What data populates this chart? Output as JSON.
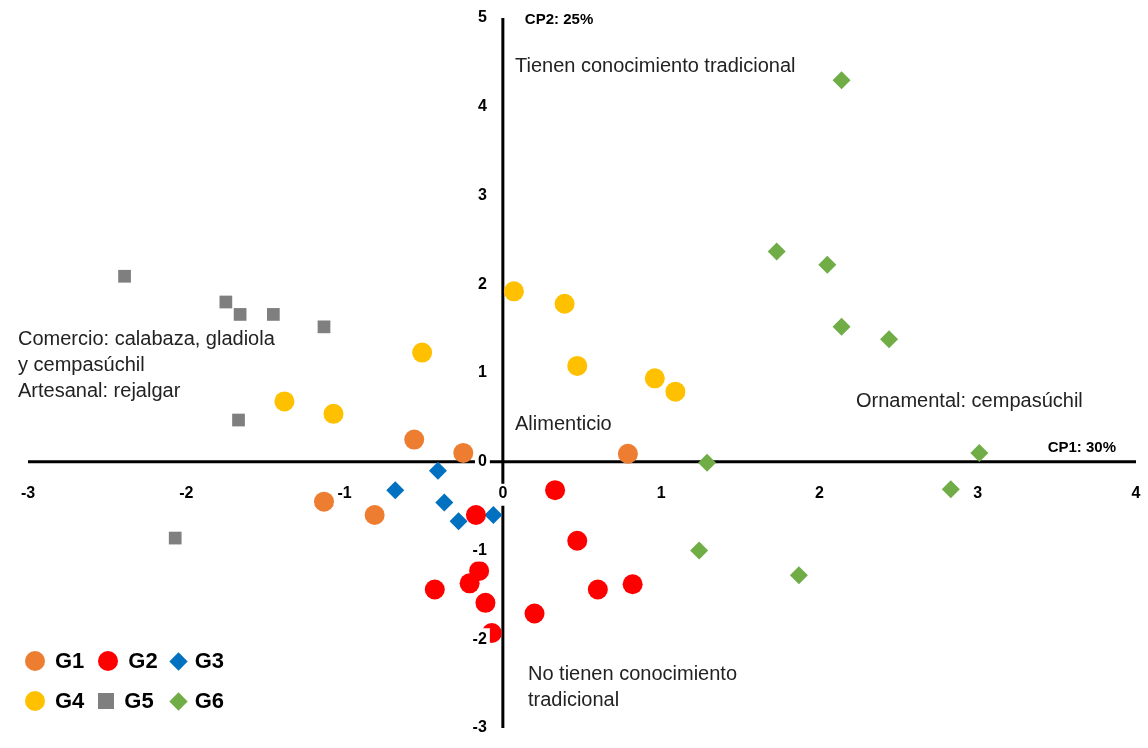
{
  "chart_data": {
    "type": "scatter",
    "xlabel": "CP1: 30%",
    "ylabel": "CP2: 25%",
    "xlim": [
      -3,
      4
    ],
    "xticks": [
      -3,
      -2,
      -1,
      0,
      1,
      2,
      3,
      4
    ],
    "ylim": [
      -3,
      5
    ],
    "yticks": [
      -3,
      -2,
      -1,
      0,
      1,
      2,
      3,
      4,
      5
    ],
    "grid": false,
    "legend": "bottom left",
    "annotations": [
      "Tienen conocimiento tradicional",
      "Comercio: calabaza, gladiola y cempasúchil",
      "Artesanal: rejalgar",
      "Alimenticio",
      "Ornamental: cempasúchil",
      "No tienen conocimiento tradicional"
    ],
    "series": [
      {
        "name": "G1",
        "color": "#ed7d31",
        "marker": "circle",
        "x": [
          -0.56,
          -0.25,
          -1.13,
          -0.81,
          0.79
        ],
        "values": [
          0.25,
          0.1,
          -0.45,
          -0.6,
          0.09
        ]
      },
      {
        "name": "G2",
        "color": "#ff0000",
        "marker": "circle",
        "x": [
          0.33,
          -0.17,
          0.47,
          -0.43,
          -0.21,
          -0.15,
          -0.11,
          -0.07,
          0.2,
          0.6,
          0.82
        ],
        "values": [
          -0.32,
          -0.6,
          -0.89,
          -1.44,
          -1.37,
          -1.23,
          -1.59,
          -1.93,
          -1.71,
          -1.44,
          -1.38
        ]
      },
      {
        "name": "G3",
        "color": "#0070c0",
        "marker": "diamond",
        "x": [
          -0.68,
          -0.41,
          -0.37,
          -0.28,
          -0.06
        ],
        "values": [
          -0.32,
          -0.1,
          -0.46,
          -0.67,
          -0.6
        ]
      },
      {
        "name": "G4",
        "color": "#ffc000",
        "marker": "circle",
        "x": [
          0.07,
          0.39,
          -0.51,
          0.47,
          0.96,
          1.09,
          -1.38,
          -1.07
        ],
        "values": [
          1.92,
          1.78,
          1.23,
          1.08,
          0.94,
          0.79,
          0.68,
          0.54
        ]
      },
      {
        "name": "G5",
        "color": "#7f7f7f",
        "marker": "square",
        "x": [
          -2.39,
          -1.75,
          -1.66,
          -1.45,
          -1.13,
          -1.67,
          -2.07
        ],
        "values": [
          2.09,
          1.8,
          1.66,
          1.66,
          1.52,
          0.47,
          -0.86
        ]
      },
      {
        "name": "G6",
        "color": "#70ad47",
        "marker": "diamond",
        "x": [
          2.14,
          1.73,
          2.05,
          2.14,
          2.44,
          1.29,
          3.01,
          2.83,
          1.24,
          1.87
        ],
        "values": [
          4.3,
          2.37,
          2.22,
          1.52,
          1.38,
          -0.01,
          0.1,
          -0.31,
          -1.0,
          -1.28
        ]
      }
    ]
  }
}
